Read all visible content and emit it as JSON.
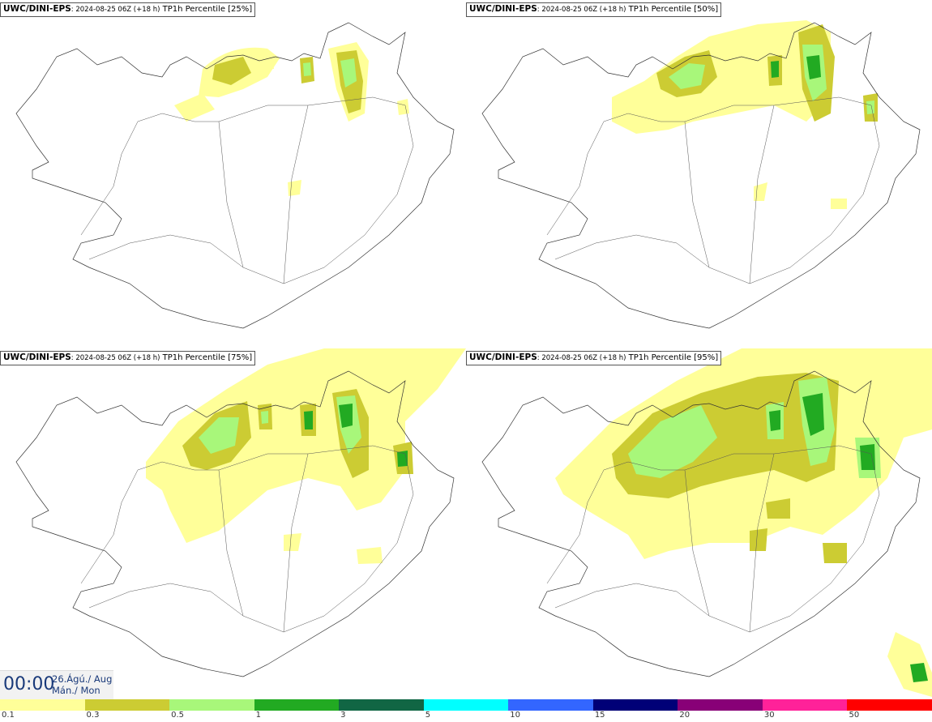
{
  "panels": [
    {
      "model": "UWC/DINI-EPS",
      "run": ": 2024-08-25 06Z (+18 h)",
      "param": " TP1h Percentile [25%]"
    },
    {
      "model": "UWC/DINI-EPS",
      "run": ": 2024-08-25 06Z (+18 h)",
      "param": " TP1h Percentile [50%]"
    },
    {
      "model": "UWC/DINI-EPS",
      "run": ": 2024-08-25 06Z (+18 h)",
      "param": " TP1h Percentile [75%]"
    },
    {
      "model": "UWC/DINI-EPS",
      "run": ": 2024-08-25 06Z (+18 h)",
      "param": " TP1h Percentile [95%]"
    }
  ],
  "valid_time": "00:00",
  "date_line1": "26.Ágú./ Aug",
  "date_line2": "Mán./ Mon",
  "legend": {
    "colors": [
      "#ffff99",
      "#cccc33",
      "#a8f77a",
      "#22aa22",
      "#116644",
      "#00ffff",
      "#3366ff",
      "#000077",
      "#880077",
      "#ff2299",
      "#ff0000"
    ],
    "ticks": [
      "0.1",
      "0.3",
      "0.5",
      "1",
      "3",
      "5",
      "10",
      "15",
      "20",
      "30",
      "50"
    ]
  },
  "map_colors": {
    "yellow": "#ffff99",
    "olive": "#cccc33",
    "lightgreen": "#a8f77a",
    "green": "#22aa22"
  }
}
